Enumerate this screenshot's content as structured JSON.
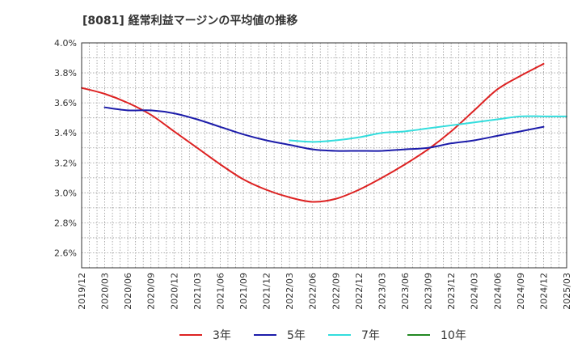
{
  "chart_data": {
    "type": "line",
    "title": "[8081]  経常利益マージンの平均値の推移",
    "xlabel": "",
    "ylabel": "",
    "ylim": [
      2.5,
      4.0
    ],
    "y_ticks": [
      2.6,
      2.8,
      3.0,
      3.2,
      3.4,
      3.6,
      3.8,
      4.0
    ],
    "y_tick_labels": [
      "2.6%",
      "2.8%",
      "3.0%",
      "3.2%",
      "3.4%",
      "3.6%",
      "3.8%",
      "4.0%"
    ],
    "x_tick_labels": [
      "2019/12",
      "2020/03",
      "2020/06",
      "2020/09",
      "2020/12",
      "2021/03",
      "2021/06",
      "2021/09",
      "2021/12",
      "2022/03",
      "2022/06",
      "2022/09",
      "2022/12",
      "2023/03",
      "2023/06",
      "2023/09",
      "2023/12",
      "2024/03",
      "2024/06",
      "2024/09",
      "2024/12",
      "2025/03"
    ],
    "grid": true,
    "legend_position": "bottom",
    "series": [
      {
        "name": "3年",
        "color": "#dd2222",
        "start_index": 0,
        "values": [
          3.7,
          3.66,
          3.6,
          3.52,
          3.41,
          3.3,
          3.19,
          3.09,
          3.02,
          2.97,
          2.94,
          2.96,
          3.02,
          3.1,
          3.19,
          3.29,
          3.41,
          3.55,
          3.69,
          3.78,
          3.86
        ]
      },
      {
        "name": "5年",
        "color": "#1c1caa",
        "start_index": 1,
        "values": [
          3.57,
          3.55,
          3.55,
          3.53,
          3.49,
          3.44,
          3.39,
          3.35,
          3.32,
          3.29,
          3.28,
          3.28,
          3.28,
          3.29,
          3.3,
          3.33,
          3.35,
          3.38,
          3.41,
          3.44
        ]
      },
      {
        "name": "7年",
        "color": "#33dddd",
        "start_index": 9,
        "values": [
          3.35,
          3.34,
          3.35,
          3.37,
          3.4,
          3.41,
          3.43,
          3.45,
          3.47,
          3.49,
          3.51,
          3.51,
          3.51
        ]
      },
      {
        "name": "10年",
        "color": "#228822",
        "start_index": 0,
        "values": []
      }
    ]
  }
}
